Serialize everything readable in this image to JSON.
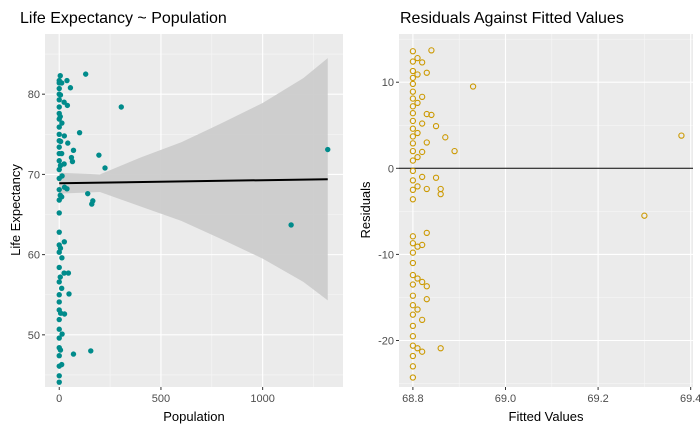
{
  "chart_data": [
    {
      "type": "scatter",
      "title": "Life Expectancy ~ Population",
      "xlabel": "Population",
      "ylabel": "Life Expectancy",
      "xlim": [
        -70,
        1395
      ],
      "ylim": [
        43.5,
        87.5
      ],
      "x_ticks": [
        0,
        500,
        1000
      ],
      "x_tick_labels": [
        "0",
        "500",
        "1000"
      ],
      "y_ticks": [
        50,
        60,
        70,
        80
      ],
      "y_tick_labels": [
        "50",
        "60",
        "70",
        "80"
      ],
      "grid": true,
      "legend": "none",
      "point_color": "#008b8b",
      "fit_line": {
        "x": [
          0,
          1320
        ],
        "y": [
          68.9,
          69.4
        ],
        "color": "#000000"
      },
      "confidence_band": {
        "x": [
          0,
          200,
          400,
          600,
          800,
          1000,
          1200,
          1320
        ],
        "lower": [
          67.6,
          67.8,
          66.0,
          64.2,
          61.9,
          59.5,
          56.6,
          54.3
        ],
        "upper": [
          70.2,
          70.0,
          72.1,
          74.0,
          76.4,
          78.9,
          82.0,
          84.5
        ],
        "color": "#cccccc"
      },
      "points": [
        {
          "x": 0,
          "y": 81.7
        },
        {
          "x": 0,
          "y": 81.4
        },
        {
          "x": 0,
          "y": 80.7
        },
        {
          "x": 0,
          "y": 80.0
        },
        {
          "x": 0,
          "y": 79.3
        },
        {
          "x": 0,
          "y": 78.4
        },
        {
          "x": 0,
          "y": 77.6
        },
        {
          "x": 0,
          "y": 76.9
        },
        {
          "x": 0,
          "y": 75.9
        },
        {
          "x": 0,
          "y": 75.0
        },
        {
          "x": 0,
          "y": 74.2
        },
        {
          "x": 0,
          "y": 73.4
        },
        {
          "x": 0,
          "y": 72.6
        },
        {
          "x": 0,
          "y": 71.7
        },
        {
          "x": 0,
          "y": 70.6
        },
        {
          "x": 0,
          "y": 69.5
        },
        {
          "x": 0,
          "y": 68.1
        },
        {
          "x": 0,
          "y": 66.8
        },
        {
          "x": 0,
          "y": 65.2
        },
        {
          "x": 0,
          "y": 62.8
        },
        {
          "x": 0,
          "y": 61.2
        },
        {
          "x": 0,
          "y": 60.3
        },
        {
          "x": 0,
          "y": 58.4
        },
        {
          "x": 0,
          "y": 56.6
        },
        {
          "x": 0,
          "y": 55.0
        },
        {
          "x": 0,
          "y": 54.1
        },
        {
          "x": 0,
          "y": 53.1
        },
        {
          "x": 0,
          "y": 51.9
        },
        {
          "x": 0,
          "y": 50.7
        },
        {
          "x": 0,
          "y": 49.6
        },
        {
          "x": 0,
          "y": 48.4
        },
        {
          "x": 0,
          "y": 47.4
        },
        {
          "x": 0,
          "y": 46.1
        },
        {
          "x": 0,
          "y": 44.9
        },
        {
          "x": 0,
          "y": 44.1
        },
        {
          "x": 5,
          "y": 82.3
        },
        {
          "x": 6,
          "y": 79.9
        },
        {
          "x": 5,
          "y": 77.2
        },
        {
          "x": 7,
          "y": 74.1
        },
        {
          "x": 6,
          "y": 71.1
        },
        {
          "x": 5,
          "y": 67.4
        },
        {
          "x": 6,
          "y": 60.8
        },
        {
          "x": 5,
          "y": 57.2
        },
        {
          "x": 7,
          "y": 52.7
        },
        {
          "x": 6,
          "y": 48.1
        },
        {
          "x": 12,
          "y": 81.4
        },
        {
          "x": 13,
          "y": 76.4
        },
        {
          "x": 12,
          "y": 72.6
        },
        {
          "x": 14,
          "y": 69.8
        },
        {
          "x": 12,
          "y": 67.2
        },
        {
          "x": 13,
          "y": 59.6
        },
        {
          "x": 12,
          "y": 55.8
        },
        {
          "x": 14,
          "y": 50.1
        },
        {
          "x": 12,
          "y": 46.3
        },
        {
          "x": 24,
          "y": 79.0
        },
        {
          "x": 25,
          "y": 74.8
        },
        {
          "x": 24,
          "y": 71.3
        },
        {
          "x": 26,
          "y": 68.4
        },
        {
          "x": 25,
          "y": 61.6
        },
        {
          "x": 24,
          "y": 57.7
        },
        {
          "x": 26,
          "y": 52.6
        },
        {
          "x": 38,
          "y": 81.7
        },
        {
          "x": 40,
          "y": 78.6
        },
        {
          "x": 42,
          "y": 73.9
        },
        {
          "x": 38,
          "y": 68.2
        },
        {
          "x": 45,
          "y": 57.7
        },
        {
          "x": 48,
          "y": 55.1
        },
        {
          "x": 55,
          "y": 80.8
        },
        {
          "x": 60,
          "y": 72.1
        },
        {
          "x": 70,
          "y": 73.0
        },
        {
          "x": 65,
          "y": 71.6
        },
        {
          "x": 70,
          "y": 47.6
        },
        {
          "x": 100,
          "y": 75.2
        },
        {
          "x": 130,
          "y": 82.5
        },
        {
          "x": 140,
          "y": 67.6
        },
        {
          "x": 155,
          "y": 48.0
        },
        {
          "x": 160,
          "y": 66.3
        },
        {
          "x": 165,
          "y": 66.7
        },
        {
          "x": 195,
          "y": 72.4
        },
        {
          "x": 225,
          "y": 70.8
        },
        {
          "x": 305,
          "y": 78.4
        },
        {
          "x": 1140,
          "y": 63.7
        },
        {
          "x": 1320,
          "y": 73.1
        }
      ]
    },
    {
      "type": "scatter",
      "title": "Residuals Against Fitted Values",
      "xlabel": "Fitted Values",
      "ylabel": "Residuals",
      "xlim": [
        68.77,
        69.405
      ],
      "ylim": [
        -25.4,
        15.6
      ],
      "x_ticks": [
        68.8,
        69.0,
        69.2,
        69.4
      ],
      "x_tick_labels": [
        "68.8",
        "69.0",
        "69.2",
        "69.4"
      ],
      "y_ticks": [
        -20,
        -10,
        0,
        10
      ],
      "y_tick_labels": [
        "-20",
        "-10",
        "0",
        "10"
      ],
      "grid": true,
      "legend": "none",
      "point_color": "#cc9900",
      "reference_line": {
        "y": 0,
        "color": "#000000"
      },
      "points": [
        {
          "x": 68.8,
          "y": 13.6
        },
        {
          "x": 68.8,
          "y": 12.4
        },
        {
          "x": 68.8,
          "y": 11.3
        },
        {
          "x": 68.8,
          "y": 10.5
        },
        {
          "x": 68.8,
          "y": 9.8
        },
        {
          "x": 68.8,
          "y": 8.9
        },
        {
          "x": 68.8,
          "y": 8.1
        },
        {
          "x": 68.8,
          "y": 7.2
        },
        {
          "x": 68.8,
          "y": 6.4
        },
        {
          "x": 68.8,
          "y": 5.5
        },
        {
          "x": 68.8,
          "y": 4.6
        },
        {
          "x": 68.8,
          "y": 3.7
        },
        {
          "x": 68.8,
          "y": 2.9
        },
        {
          "x": 68.8,
          "y": 2.0
        },
        {
          "x": 68.8,
          "y": 0.9
        },
        {
          "x": 68.8,
          "y": -0.3
        },
        {
          "x": 68.8,
          "y": -1.4
        },
        {
          "x": 68.8,
          "y": -2.5
        },
        {
          "x": 68.8,
          "y": -3.6
        },
        {
          "x": 68.8,
          "y": -7.9
        },
        {
          "x": 68.8,
          "y": -8.7
        },
        {
          "x": 68.8,
          "y": -9.8
        },
        {
          "x": 68.8,
          "y": -11.0
        },
        {
          "x": 68.8,
          "y": -12.4
        },
        {
          "x": 68.8,
          "y": -13.5
        },
        {
          "x": 68.8,
          "y": -14.8
        },
        {
          "x": 68.8,
          "y": -15.9
        },
        {
          "x": 68.8,
          "y": -17.0
        },
        {
          "x": 68.8,
          "y": -18.3
        },
        {
          "x": 68.8,
          "y": -19.5
        },
        {
          "x": 68.8,
          "y": -20.6
        },
        {
          "x": 68.8,
          "y": -21.8
        },
        {
          "x": 68.8,
          "y": -23.0
        },
        {
          "x": 68.8,
          "y": -24.3
        },
        {
          "x": 68.81,
          "y": 12.8
        },
        {
          "x": 68.81,
          "y": 10.9
        },
        {
          "x": 68.81,
          "y": 7.6
        },
        {
          "x": 68.81,
          "y": 4.1
        },
        {
          "x": 68.81,
          "y": 1.3
        },
        {
          "x": 68.81,
          "y": -2.1
        },
        {
          "x": 68.81,
          "y": -9.1
        },
        {
          "x": 68.81,
          "y": -12.8
        },
        {
          "x": 68.81,
          "y": -16.4
        },
        {
          "x": 68.81,
          "y": -20.9
        },
        {
          "x": 68.82,
          "y": 12.3
        },
        {
          "x": 68.82,
          "y": 8.3
        },
        {
          "x": 68.82,
          "y": 5.2
        },
        {
          "x": 68.82,
          "y": 1.9
        },
        {
          "x": 68.82,
          "y": -1.0
        },
        {
          "x": 68.82,
          "y": -8.9
        },
        {
          "x": 68.82,
          "y": -13.2
        },
        {
          "x": 68.82,
          "y": -17.6
        },
        {
          "x": 68.82,
          "y": -21.3
        },
        {
          "x": 68.83,
          "y": 11.1
        },
        {
          "x": 68.83,
          "y": 6.3
        },
        {
          "x": 68.83,
          "y": 3.0
        },
        {
          "x": 68.83,
          "y": -2.4
        },
        {
          "x": 68.83,
          "y": -7.5
        },
        {
          "x": 68.83,
          "y": -13.7
        },
        {
          "x": 68.83,
          "y": -15.2
        },
        {
          "x": 68.84,
          "y": 13.7
        },
        {
          "x": 68.84,
          "y": 6.2
        },
        {
          "x": 68.85,
          "y": 4.9
        },
        {
          "x": 68.85,
          "y": -1.1
        },
        {
          "x": 68.86,
          "y": -2.4
        },
        {
          "x": 68.86,
          "y": -3.0
        },
        {
          "x": 68.86,
          "y": -20.9
        },
        {
          "x": 68.87,
          "y": 3.6
        },
        {
          "x": 68.89,
          "y": 2.0
        },
        {
          "x": 68.93,
          "y": 9.5
        },
        {
          "x": 69.3,
          "y": -5.5
        },
        {
          "x": 69.38,
          "y": 3.8
        }
      ]
    }
  ]
}
